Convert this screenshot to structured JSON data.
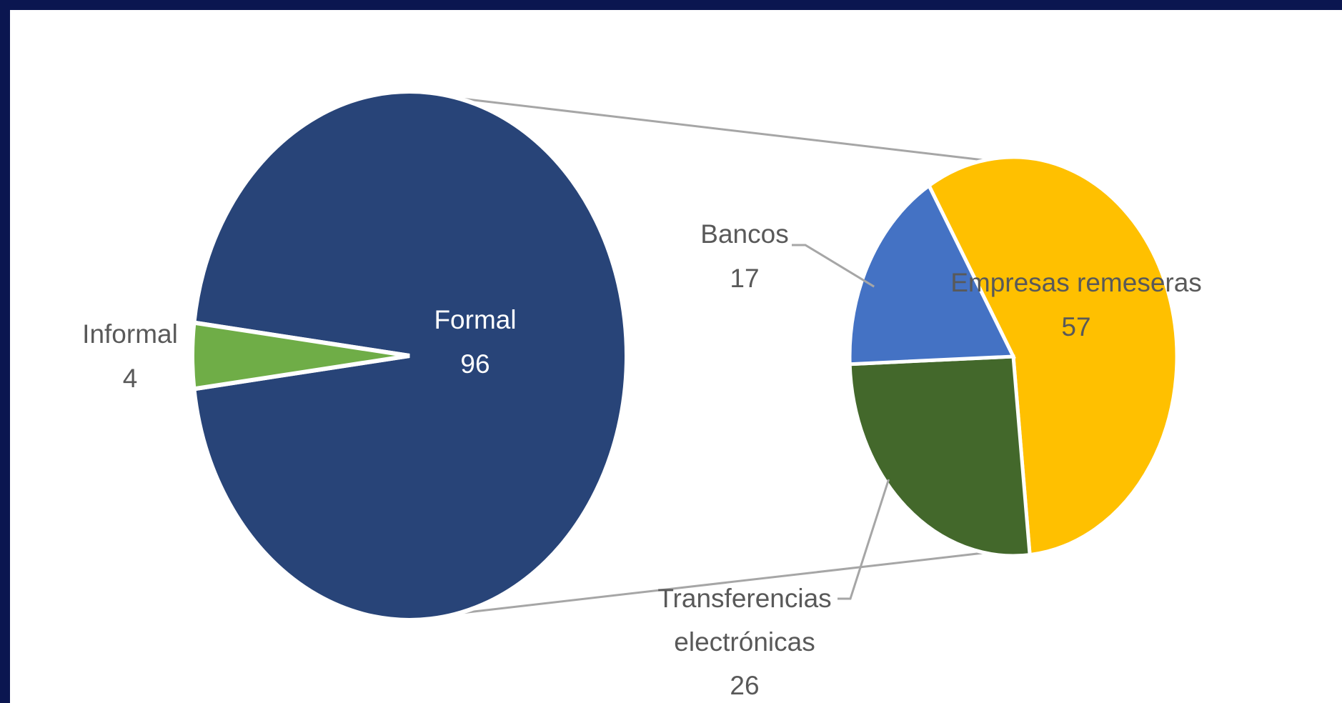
{
  "chart_data": {
    "type": "pie",
    "subtype": "pie-of-pie",
    "main_pie": {
      "slices": [
        {
          "name": "Formal",
          "value": 96,
          "color": "#284478",
          "label_name": "Formal",
          "label_value": "96"
        },
        {
          "name": "Informal",
          "value": 4,
          "color": "#6fad47",
          "label_name": "Informal",
          "label_value": "4"
        }
      ]
    },
    "secondary_pie": {
      "breakdown_of": "Formal",
      "slices": [
        {
          "name": "Empresas remeseras",
          "value": 57,
          "color": "#ffc000",
          "label_name": "Empresas remeseras",
          "label_value": "57"
        },
        {
          "name": "Transferencias electrónicas",
          "value": 26,
          "color": "#43682b",
          "label_name_line1": "Transferencias",
          "label_name_line2": "electrónicas",
          "label_value": "26"
        },
        {
          "name": "Bancos",
          "value": 17,
          "color": "#4472c4",
          "label_name": "Bancos",
          "label_value": "17"
        }
      ]
    },
    "connector_color": "#a6a6a6",
    "background_border_color": "#0b1650"
  }
}
